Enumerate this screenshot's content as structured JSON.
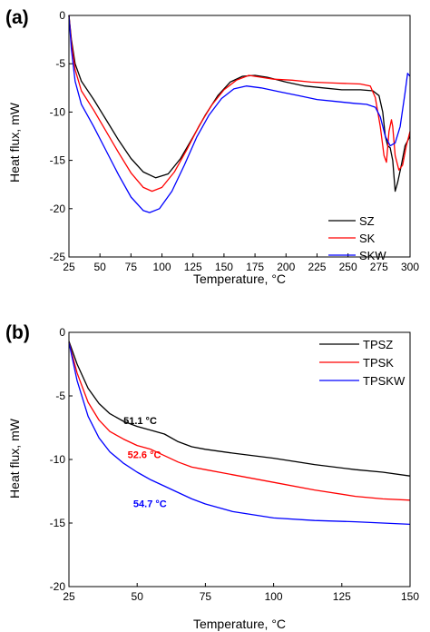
{
  "chart_data": [
    {
      "panel_label": "(a)",
      "type": "line",
      "xlabel": "Temperature, °C",
      "ylabel": "Heat flux, mW",
      "xlim": [
        25,
        300
      ],
      "ylim": [
        -25,
        0
      ],
      "xticks": [
        25,
        50,
        75,
        100,
        125,
        150,
        175,
        200,
        225,
        250,
        275,
        300
      ],
      "yticks": [
        0,
        -5,
        -10,
        -15,
        -20,
        -25
      ],
      "legend_position": "bottom-right",
      "grid": false,
      "series": [
        {
          "name": "SZ",
          "color": "#000000",
          "points": [
            [
              25,
              0
            ],
            [
              27,
              -2.5
            ],
            [
              30,
              -5
            ],
            [
              35,
              -6.8
            ],
            [
              45,
              -8.7
            ],
            [
              55,
              -10.8
            ],
            [
              65,
              -12.9
            ],
            [
              75,
              -14.8
            ],
            [
              85,
              -16.2
            ],
            [
              95,
              -16.8
            ],
            [
              105,
              -16.4
            ],
            [
              115,
              -14.8
            ],
            [
              125,
              -12.6
            ],
            [
              135,
              -10.3
            ],
            [
              145,
              -8.3
            ],
            [
              155,
              -6.9
            ],
            [
              165,
              -6.3
            ],
            [
              175,
              -6.2
            ],
            [
              185,
              -6.4
            ],
            [
              200,
              -6.9
            ],
            [
              215,
              -7.3
            ],
            [
              230,
              -7.5
            ],
            [
              245,
              -7.7
            ],
            [
              260,
              -7.7
            ],
            [
              270,
              -7.8
            ],
            [
              275,
              -8.3
            ],
            [
              278,
              -10
            ],
            [
              280,
              -12.5
            ],
            [
              282,
              -13.5
            ],
            [
              284,
              -13.7
            ],
            [
              286,
              -15
            ],
            [
              288,
              -18.2
            ],
            [
              290,
              -17.3
            ],
            [
              293,
              -15.5
            ],
            [
              296,
              -13.5
            ],
            [
              300,
              -12.5
            ]
          ]
        },
        {
          "name": "SK",
          "color": "#ff0000",
          "points": [
            [
              25,
              0
            ],
            [
              27,
              -2.8
            ],
            [
              30,
              -5.6
            ],
            [
              35,
              -7.8
            ],
            [
              45,
              -9.8
            ],
            [
              55,
              -12
            ],
            [
              65,
              -14.2
            ],
            [
              75,
              -16.3
            ],
            [
              85,
              -17.8
            ],
            [
              92,
              -18.2
            ],
            [
              100,
              -17.8
            ],
            [
              110,
              -16.2
            ],
            [
              120,
              -13.9
            ],
            [
              130,
              -11.4
            ],
            [
              140,
              -9.3
            ],
            [
              150,
              -7.7
            ],
            [
              160,
              -6.7
            ],
            [
              170,
              -6.2
            ],
            [
              180,
              -6.4
            ],
            [
              190,
              -6.6
            ],
            [
              205,
              -6.7
            ],
            [
              220,
              -6.9
            ],
            [
              240,
              -7
            ],
            [
              260,
              -7.1
            ],
            [
              268,
              -7.3
            ],
            [
              272,
              -8.5
            ],
            [
              276,
              -11.5
            ],
            [
              279,
              -14.5
            ],
            [
              281,
              -15.2
            ],
            [
              283,
              -12
            ],
            [
              285,
              -10.8
            ],
            [
              286,
              -11.5
            ],
            [
              288,
              -14.5
            ],
            [
              291,
              -16
            ],
            [
              294,
              -15.5
            ],
            [
              297,
              -13.5
            ],
            [
              300,
              -12
            ]
          ]
        },
        {
          "name": "SKW",
          "color": "#0000ff",
          "points": [
            [
              25,
              0
            ],
            [
              27,
              -3.5
            ],
            [
              30,
              -6.8
            ],
            [
              35,
              -9.2
            ],
            [
              45,
              -11.5
            ],
            [
              55,
              -14
            ],
            [
              65,
              -16.5
            ],
            [
              75,
              -18.8
            ],
            [
              85,
              -20.2
            ],
            [
              90,
              -20.4
            ],
            [
              98,
              -20
            ],
            [
              108,
              -18.2
            ],
            [
              118,
              -15.5
            ],
            [
              128,
              -12.6
            ],
            [
              138,
              -10.3
            ],
            [
              148,
              -8.6
            ],
            [
              158,
              -7.6
            ],
            [
              168,
              -7.3
            ],
            [
              180,
              -7.5
            ],
            [
              195,
              -7.9
            ],
            [
              210,
              -8.3
            ],
            [
              225,
              -8.7
            ],
            [
              240,
              -8.9
            ],
            [
              255,
              -9.1
            ],
            [
              265,
              -9.2
            ],
            [
              272,
              -9.5
            ],
            [
              276,
              -10.5
            ],
            [
              280,
              -12.5
            ],
            [
              284,
              -13.5
            ],
            [
              288,
              -13.2
            ],
            [
              292,
              -11.5
            ],
            [
              296,
              -8
            ],
            [
              298,
              -6
            ],
            [
              300,
              -6.3
            ]
          ]
        }
      ]
    },
    {
      "panel_label": "(b)",
      "type": "line",
      "xlabel": "Temperature, °C",
      "ylabel": "Heat flux, mW",
      "xlim": [
        25,
        150
      ],
      "ylim": [
        -20,
        0
      ],
      "xticks": [
        25,
        50,
        75,
        100,
        125,
        150
      ],
      "yticks": [
        0,
        -5,
        -10,
        -15,
        -20
      ],
      "legend_position": "top-right",
      "grid": false,
      "series": [
        {
          "name": "TPSZ",
          "color": "#000000",
          "points": [
            [
              25,
              -0.7
            ],
            [
              28,
              -2.5
            ],
            [
              32,
              -4.4
            ],
            [
              36,
              -5.6
            ],
            [
              40,
              -6.4
            ],
            [
              45,
              -7
            ],
            [
              50,
              -7.4
            ],
            [
              55,
              -7.7
            ],
            [
              60,
              -8
            ],
            [
              65,
              -8.6
            ],
            [
              70,
              -9
            ],
            [
              75,
              -9.2
            ],
            [
              85,
              -9.5
            ],
            [
              100,
              -9.9
            ],
            [
              115,
              -10.4
            ],
            [
              130,
              -10.8
            ],
            [
              140,
              -11
            ],
            [
              150,
              -11.3
            ]
          ]
        },
        {
          "name": "TPSK",
          "color": "#ff0000",
          "points": [
            [
              25,
              -0.8
            ],
            [
              28,
              -3.2
            ],
            [
              32,
              -5.5
            ],
            [
              36,
              -6.9
            ],
            [
              40,
              -7.8
            ],
            [
              45,
              -8.4
            ],
            [
              50,
              -8.9
            ],
            [
              55,
              -9.2
            ],
            [
              60,
              -9.7
            ],
            [
              65,
              -10.2
            ],
            [
              70,
              -10.6
            ],
            [
              75,
              -10.8
            ],
            [
              85,
              -11.2
            ],
            [
              100,
              -11.8
            ],
            [
              115,
              -12.4
            ],
            [
              130,
              -12.9
            ],
            [
              140,
              -13.1
            ],
            [
              150,
              -13.2
            ]
          ]
        },
        {
          "name": "TPSKW",
          "color": "#0000ff",
          "points": [
            [
              25,
              -0.8
            ],
            [
              28,
              -3.8
            ],
            [
              32,
              -6.6
            ],
            [
              36,
              -8.3
            ],
            [
              40,
              -9.4
            ],
            [
              45,
              -10.3
            ],
            [
              50,
              -11
            ],
            [
              55,
              -11.6
            ],
            [
              60,
              -12.1
            ],
            [
              65,
              -12.6
            ],
            [
              70,
              -13.1
            ],
            [
              75,
              -13.5
            ],
            [
              85,
              -14.1
            ],
            [
              100,
              -14.6
            ],
            [
              115,
              -14.8
            ],
            [
              130,
              -14.9
            ],
            [
              140,
              -15
            ],
            [
              150,
              -15.1
            ]
          ]
        }
      ],
      "annotations": [
        {
          "text": "51.1 °C",
          "x": 51.1,
          "y": -7.5,
          "color": "#000000"
        },
        {
          "text": "52.6 °C",
          "x": 52.6,
          "y": -9.9,
          "color": "#ff0000"
        },
        {
          "text": "54.7 °C",
          "x": 54.7,
          "y": -12.9,
          "color": "#0000ff"
        }
      ]
    }
  ]
}
